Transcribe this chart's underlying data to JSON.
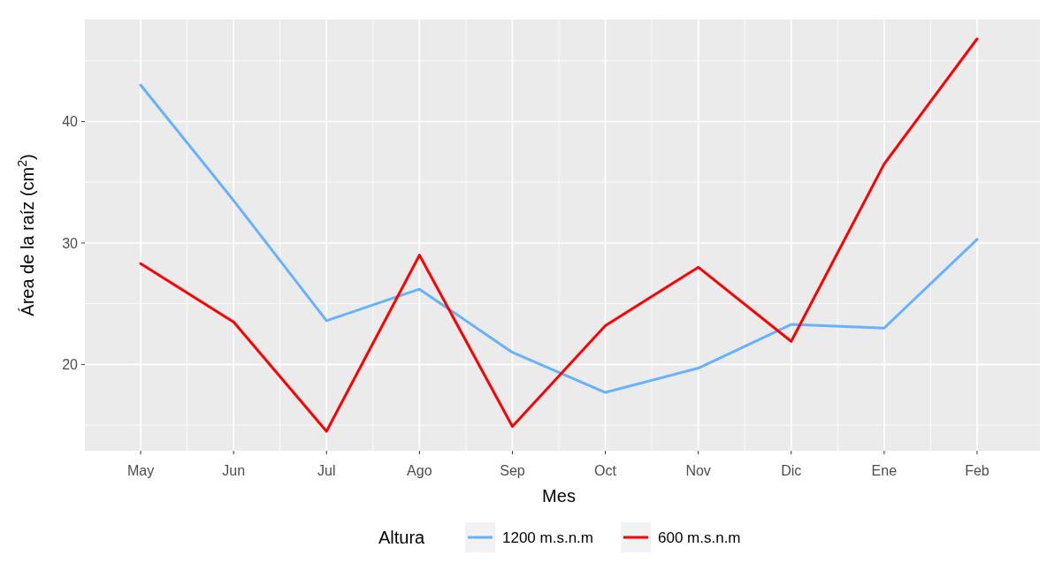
{
  "chart_data": {
    "type": "line",
    "xlabel": "Mes",
    "ylabel": "Área de la raíz (cm$^{2}$)",
    "legend_title": "Altura",
    "legend": "bottom",
    "grid": true,
    "categories": [
      "May",
      "Jun",
      "Jul",
      "Ago",
      "Sep",
      "Oct",
      "Nov",
      "Dic",
      "Ene",
      "Feb"
    ],
    "ylim": [
      12.9,
      48.4
    ],
    "yticks": [
      20,
      30,
      40
    ],
    "series": [
      {
        "name": "1200 m.s.n.m",
        "color": "#66b2ff",
        "values": [
          43.0,
          33.5,
          23.6,
          26.2,
          21.0,
          17.7,
          19.7,
          23.3,
          23.0,
          30.3
        ]
      },
      {
        "name": "600 m.s.n.m",
        "color": "#ff0000",
        "values": [
          28.3,
          23.5,
          14.5,
          29.0,
          14.9,
          23.2,
          28.0,
          21.9,
          36.5,
          46.8
        ]
      }
    ]
  }
}
